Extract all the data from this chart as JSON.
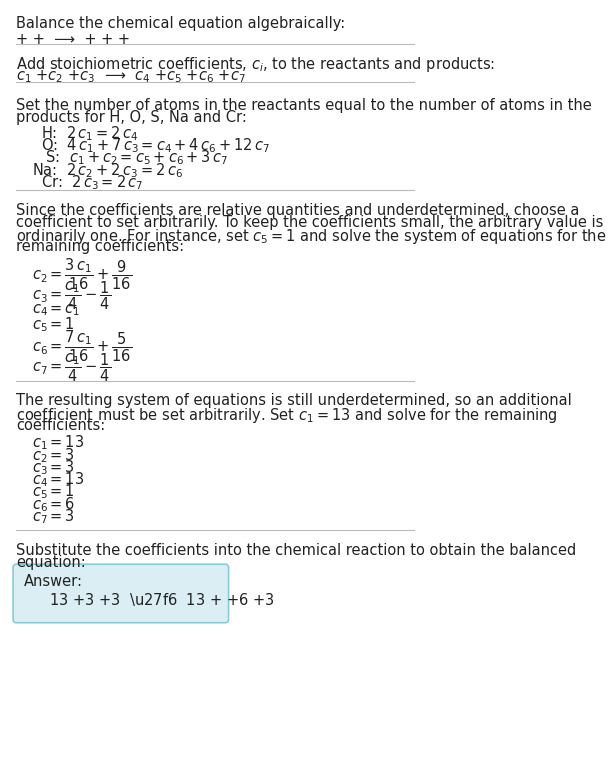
{
  "bg_color": "#ffffff",
  "text_color": "#222222",
  "title": "Balance the chemical equation algebraically:",
  "section2_intro": "Add stoichiometric coefficients, $c_i$, to the reactants and products:",
  "section3_intro1": "Set the number of atoms in the reactants equal to the number of atoms in the",
  "section3_intro2": "products for H, O, S, Na and Cr:",
  "section4_text1": "Since the coefficients are relative quantities and underdetermined, choose a",
  "section4_text2": "coefficient to set arbitrarily. To keep the coefficients small, the arbitrary value is",
  "section4_text3": "ordinarily one. For instance, set $c_5 = 1$ and solve the system of equations for the",
  "section4_text4": "remaining coefficients:",
  "section5_text1": "The resulting system of equations is still underdetermined, so an additional",
  "section5_text2": "coefficient must be set arbitrarily. Set $c_1 = 13$ and solve for the remaining",
  "section5_text3": "coefficients:",
  "section6_text1": "Substitute the coefficients into the chemical reaction to obtain the balanced",
  "section6_text2": "equation:",
  "answer_box_color": "#daeef3",
  "answer_box_border": "#88ccd8",
  "final_coeffs": [
    "$c_1 = 13$",
    "$c_2 = 3$",
    "$c_3 = 3$",
    "$c_4 = 13$",
    "$c_5 = 1$",
    "$c_6 = 6$",
    "$c_7 = 3$"
  ],
  "divider_color": "#bbbbbb"
}
